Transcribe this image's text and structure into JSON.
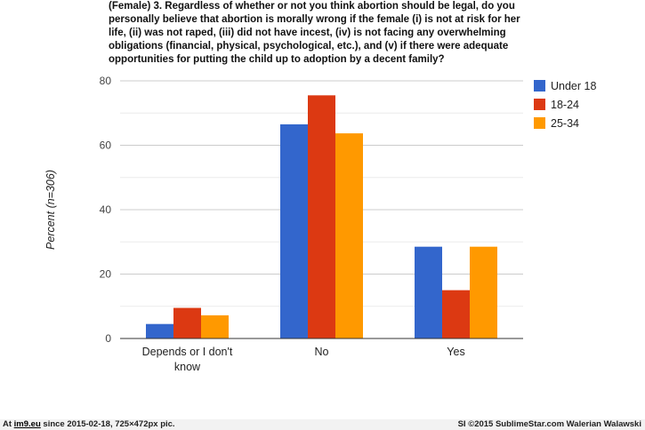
{
  "chart_data": {
    "type": "bar",
    "title": "(Female) 3. Regardless of whether or not you think abortion should be legal, do you personally believe that abortion is morally wrong if the female (i) is not at risk for her life, (ii) was not raped, (iii) did not have incest, (iv) is not facing any overwhelming obligations (financial, physical, psychological, etc.), and (v) if there were adequate opportunities for putting the child up to adoption by a decent family?",
    "xlabel": "",
    "ylabel": "Percent (n=306)",
    "ylim": [
      0,
      80
    ],
    "yticks": [
      0,
      20,
      40,
      60,
      80
    ],
    "grid": true,
    "legend_position": "right-top",
    "categories": [
      [
        "Depends or I don't",
        "know"
      ],
      [
        "No"
      ],
      [
        "Yes"
      ]
    ],
    "series": [
      {
        "name": "Under 18",
        "color": "#3366cc",
        "values": [
          4.5,
          66.5,
          28.5
        ]
      },
      {
        "name": "18-24",
        "color": "#dc3912",
        "values": [
          9.5,
          75.5,
          15
        ]
      },
      {
        "name": "25-34",
        "color": "#ff9900",
        "values": [
          7.2,
          63.7,
          28.5
        ]
      }
    ]
  },
  "footer": {
    "left_prefix": "At ",
    "left_site": "im9.eu",
    "left_suffix": " since 2015-02-18, 725×472px pic.",
    "right": "SI ©2015 SublimeStar.com Walerian Walawski"
  }
}
